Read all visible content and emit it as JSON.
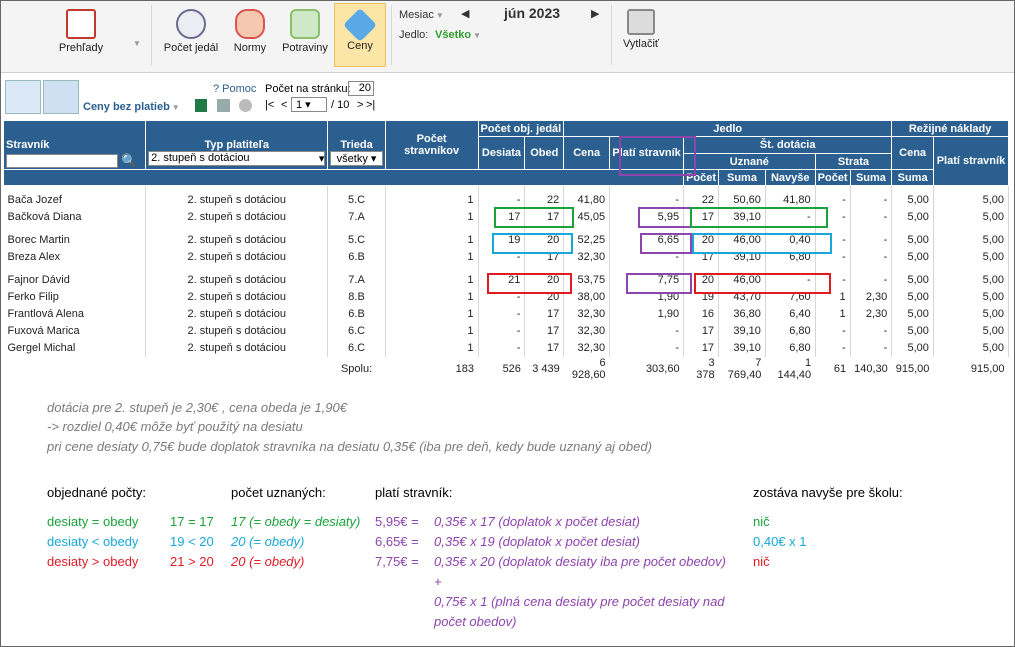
{
  "toolbar": {
    "prehlady": "Prehľady",
    "pocet_jedal": "Počet jedál",
    "normy": "Normy",
    "potraviny": "Potraviny",
    "ceny": "Ceny",
    "mesiac_label": "Mesiac",
    "month_value": "jún 2023",
    "jedlo_label": "Jedlo:",
    "jedlo_value": "Všetko",
    "vytlacit": "Vytlačiť"
  },
  "sub": {
    "view_label": "Ceny bez platieb",
    "pomoc": "? Pomoc",
    "pocet_na_stranku_label": "Počet na stránku:",
    "pocet_na_stranku": "20",
    "pager_first": "|<",
    "pager_prev": "<",
    "page_value": "1",
    "page_total": "/ 10",
    "pager_next": ">",
    "pager_last": ">|"
  },
  "headers": {
    "stravnik": "Stravník",
    "typ_platitela": "Typ platiteľa",
    "typ_value": "2. stupeň s dotáciou",
    "trieda": "Trieda",
    "trieda_value": "všetky",
    "pocet_stravnikov": "Počet stravníkov",
    "pocet_obj": "Počet obj. jedál",
    "desiata": "Desiata",
    "obed": "Obed",
    "jedlo": "Jedlo",
    "cena": "Cena",
    "plati": "Platí stravník",
    "st_dotacia": "Št. dotácia",
    "uznane": "Uznané",
    "strata": "Strata",
    "pocet": "Počet",
    "suma": "Suma",
    "navyse": "Navyše",
    "rezijne": "Režijné náklady"
  },
  "rows": [
    {
      "name": "Bača Jozef",
      "typ": "2. stupeň s dotáciou",
      "trieda": "5.C",
      "pocet": "1",
      "desiata": "-",
      "obed": "22",
      "cena": "41,80",
      "plati": "-",
      "upocet": "22",
      "usuma": "50,60",
      "navyse": "41,80",
      "spocet": "-",
      "ssuma": "-",
      "rcena": "5,00",
      "rplati": "5,00"
    },
    {
      "name": "Bačková Diana",
      "typ": "2. stupeň s dotáciou",
      "trieda": "7.A",
      "pocet": "1",
      "desiata": "17",
      "obed": "17",
      "cena": "45,05",
      "plati": "5,95",
      "upocet": "17",
      "usuma": "39,10",
      "navyse": "-",
      "spocet": "-",
      "ssuma": "-",
      "rcena": "5,00",
      "rplati": "5,00"
    },
    {
      "name": "Borec Martin",
      "typ": "2. stupeň s dotáciou",
      "trieda": "5.C",
      "pocet": "1",
      "desiata": "19",
      "obed": "20",
      "cena": "52,25",
      "plati": "6,65",
      "upocet": "20",
      "usuma": "46,00",
      "navyse": "0,40",
      "spocet": "-",
      "ssuma": "-",
      "rcena": "5,00",
      "rplati": "5,00"
    },
    {
      "name": "Breza Alex",
      "typ": "2. stupeň s dotáciou",
      "trieda": "6.B",
      "pocet": "1",
      "desiata": "-",
      "obed": "17",
      "cena": "32,30",
      "plati": "-",
      "upocet": "17",
      "usuma": "39,10",
      "navyse": "6,80",
      "spocet": "-",
      "ssuma": "-",
      "rcena": "5,00",
      "rplati": "5,00"
    },
    {
      "name": "Fajnor Dávid",
      "typ": "2. stupeň s dotáciou",
      "trieda": "7.A",
      "pocet": "1",
      "desiata": "21",
      "obed": "20",
      "cena": "53,75",
      "plati": "7,75",
      "upocet": "20",
      "usuma": "46,00",
      "navyse": "-",
      "spocet": "-",
      "ssuma": "-",
      "rcena": "5,00",
      "rplati": "5,00"
    },
    {
      "name": "Ferko Filip",
      "typ": "2. stupeň s dotáciou",
      "trieda": "8.B",
      "pocet": "1",
      "desiata": "-",
      "obed": "20",
      "cena": "38,00",
      "plati": "1,90",
      "upocet": "19",
      "usuma": "43,70",
      "navyse": "7,60",
      "spocet": "1",
      "ssuma": "2,30",
      "rcena": "5,00",
      "rplati": "5,00"
    },
    {
      "name": "Frantlová Alena",
      "typ": "2. stupeň s dotáciou",
      "trieda": "6.B",
      "pocet": "1",
      "desiata": "-",
      "obed": "17",
      "cena": "32,30",
      "plati": "1,90",
      "upocet": "16",
      "usuma": "36,80",
      "navyse": "6,40",
      "spocet": "1",
      "ssuma": "2,30",
      "rcena": "5,00",
      "rplati": "5,00"
    },
    {
      "name": "Fuxová Marica",
      "typ": "2. stupeň s dotáciou",
      "trieda": "6.C",
      "pocet": "1",
      "desiata": "-",
      "obed": "17",
      "cena": "32,30",
      "plati": "-",
      "upocet": "17",
      "usuma": "39,10",
      "navyse": "6,80",
      "spocet": "-",
      "ssuma": "-",
      "rcena": "5,00",
      "rplati": "5,00"
    },
    {
      "name": "Gergel Michal",
      "typ": "2. stupeň s dotáciou",
      "trieda": "6.C",
      "pocet": "1",
      "desiata": "-",
      "obed": "17",
      "cena": "32,30",
      "plati": "-",
      "upocet": "17",
      "usuma": "39,10",
      "navyse": "6,80",
      "spocet": "-",
      "ssuma": "-",
      "rcena": "5,00",
      "rplati": "5,00"
    }
  ],
  "totals": {
    "label": "Spolu:",
    "pocet": "183",
    "desiata": "526",
    "obed": "3 439",
    "cena": "6 928,60",
    "plati": "303,60",
    "upocet": "3 378",
    "usuma": "7 769,40",
    "navyse": "1 144,40",
    "spocet": "61",
    "ssuma": "140,30",
    "rcena": "915,00",
    "rplati": "915,00"
  },
  "notes": {
    "line1": "dotácia pre 2. stupeň je   2,30€ , cena obeda je   1,90€",
    "line2": "-> rozdiel  0,40€  môže byť použitý na desiatu",
    "line3": "pri cene desiaty  0,75€ bude doplatok stravníka na desiatu  0,35€  (iba pre deň, kedy bude uznaný aj obed)",
    "h1": "objednané počty:",
    "h2": "počet uznaných:",
    "h3": "platí stravník:",
    "h4": "zostáva navyše pre školu:",
    "g1": "desiaty = obedy",
    "g2": "17 = 17",
    "g3": "17  (= obedy = desiaty)",
    "g4": "5,95€ =",
    "g5": "0,35€  x  17 (doplatok  x  počet desiat)",
    "g6": "nič",
    "b1": "desiaty < obedy",
    "b2": "19 < 20",
    "b3": "20 (= obedy)",
    "b4": "6,65€ =",
    "b5": "0,35€  x  19 (doplatok  x  počet desiat)",
    "b6": "0,40€ x 1",
    "r1": "desiaty > obedy",
    "r2": "21 > 20",
    "r3": "20 (= obedy)",
    "r4": "7,75€ =",
    "r5": "0,35€ x 20 (doplatok desiaty iba pre počet obedov)",
    "r6": "nič",
    "plus": "+",
    "r7": "0,75€ x 1 (plná cena desiaty pre počet desiaty nad",
    "r8": "počet obedov)"
  },
  "colors": {
    "header": "#2b5f8f",
    "green": "#1aa33a",
    "blue": "#18a7d8",
    "red": "#e01b24",
    "purple": "#8e44ad"
  }
}
